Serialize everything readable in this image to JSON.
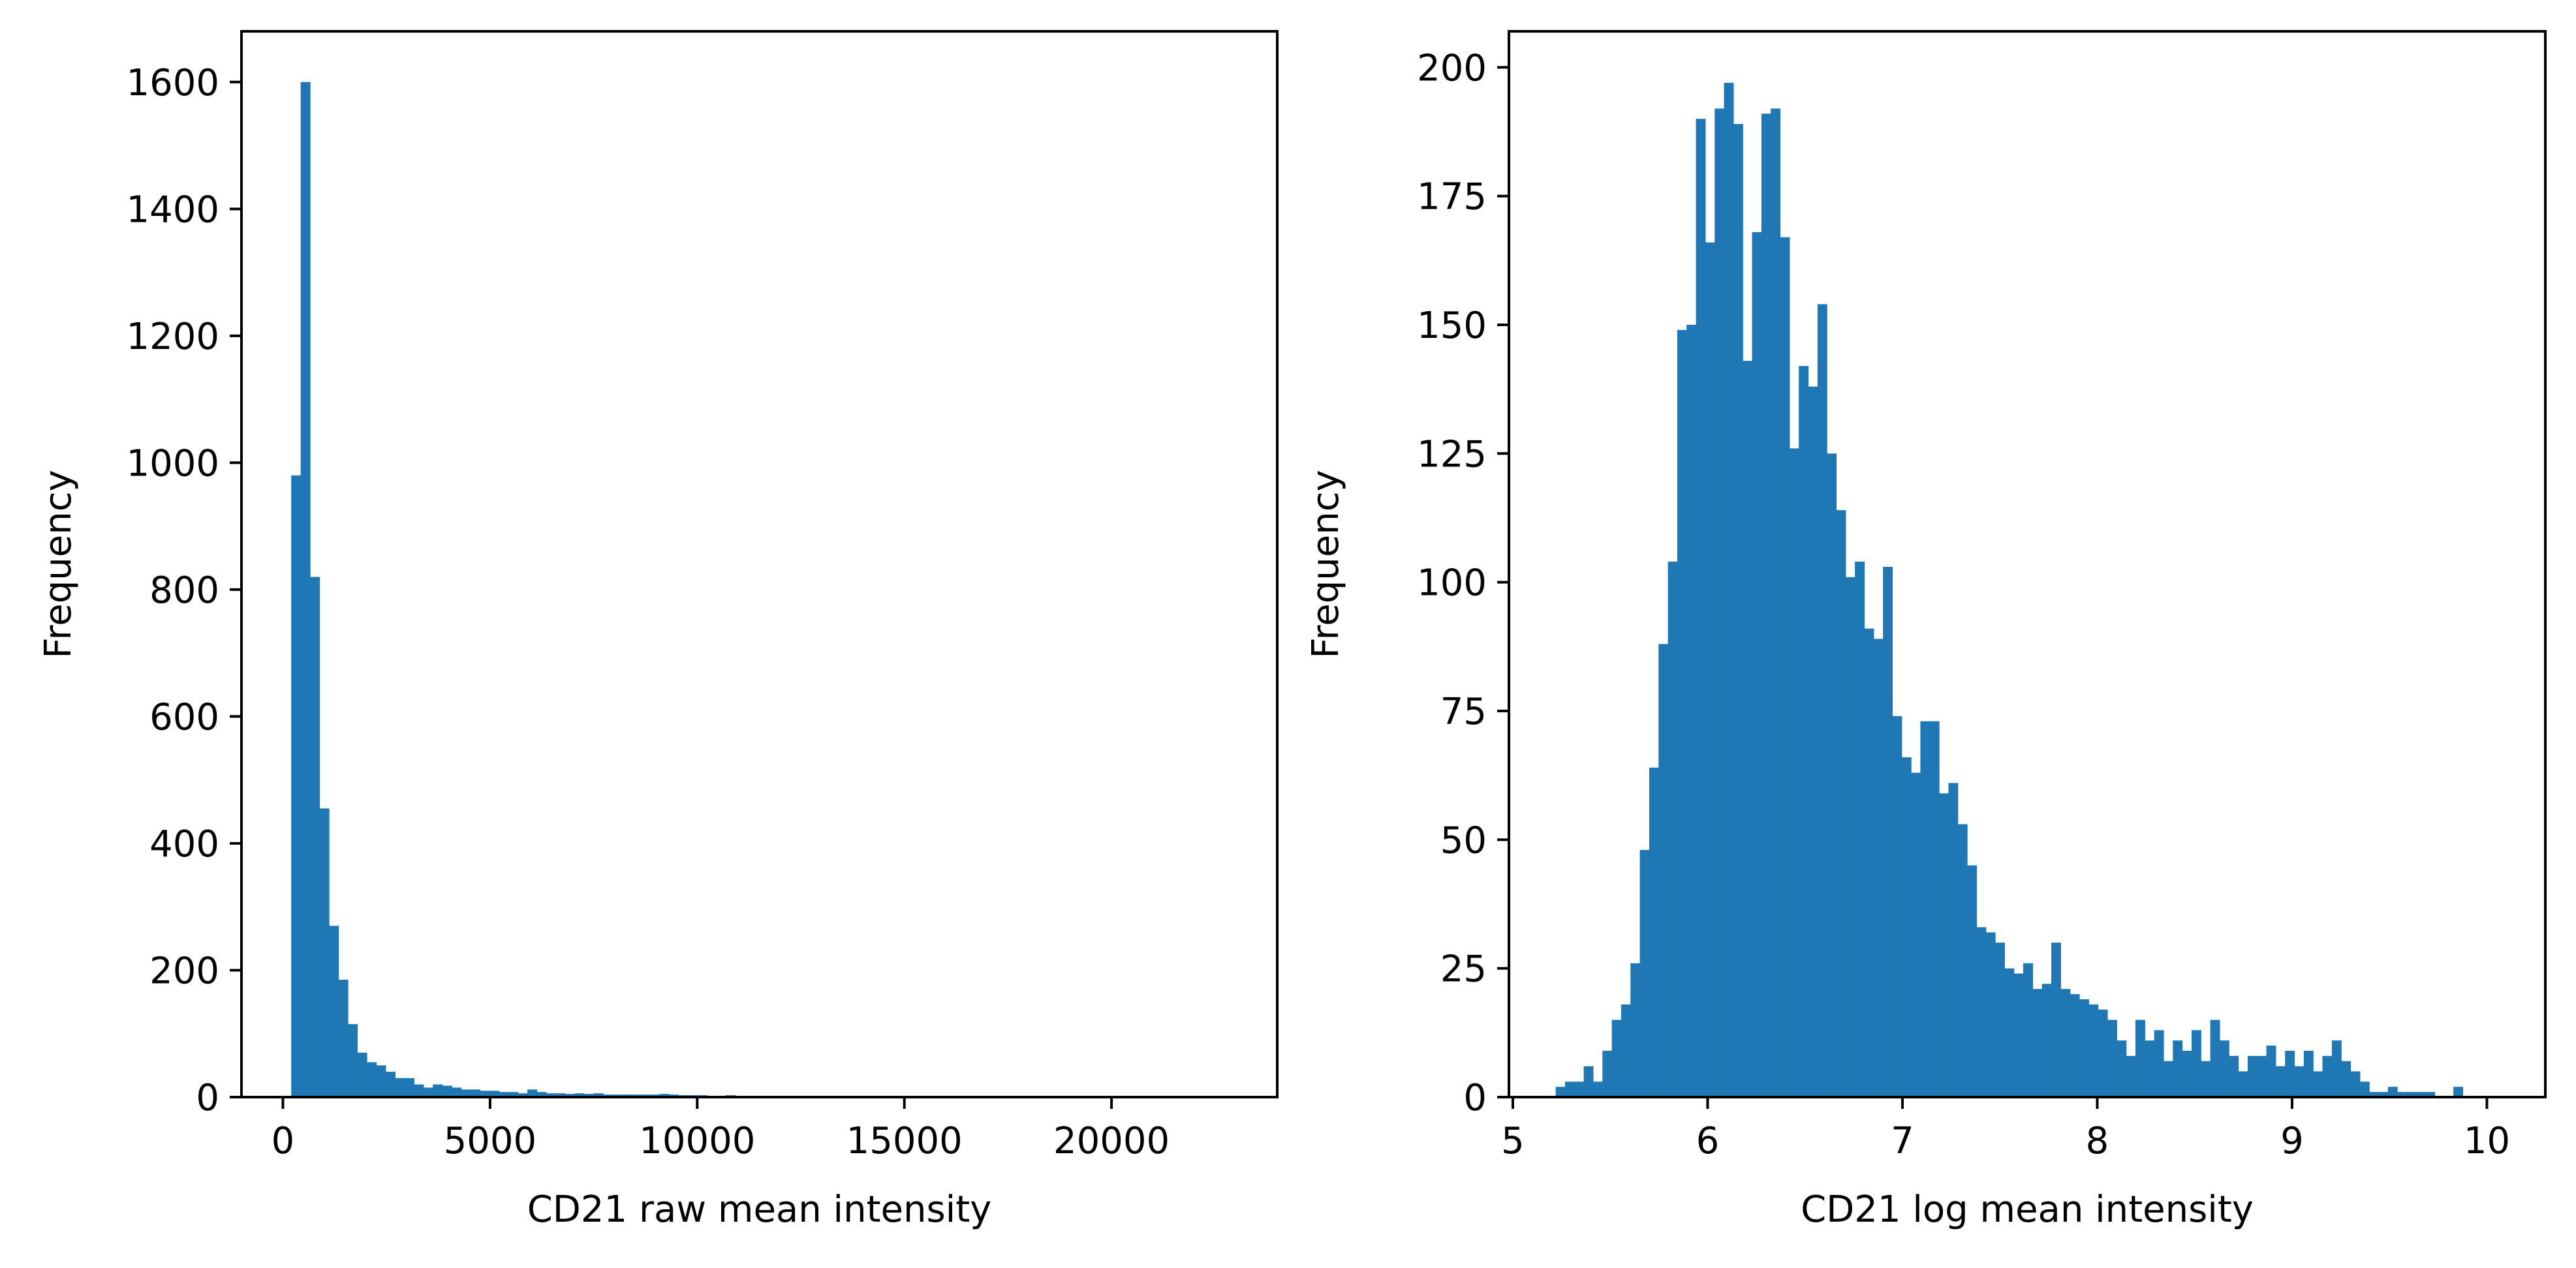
{
  "bar_color": "#1f77b4",
  "chart_data": [
    {
      "type": "bar",
      "subtype": "histogram",
      "xlabel": "CD21 raw mean intensity",
      "ylabel": "Frequency",
      "xlim": [
        -1000,
        24000
      ],
      "ylim": [
        0,
        1680
      ],
      "xticks": [
        0,
        5000,
        10000,
        15000,
        20000
      ],
      "yticks": [
        0,
        200,
        400,
        600,
        800,
        1000,
        1200,
        1400,
        1600
      ],
      "bin_start": 200,
      "bin_width": 228,
      "values": [
        980,
        1600,
        820,
        455,
        270,
        185,
        115,
        70,
        55,
        50,
        40,
        30,
        30,
        20,
        15,
        20,
        18,
        15,
        12,
        12,
        10,
        10,
        8,
        8,
        6,
        12,
        8,
        6,
        6,
        5,
        6,
        5,
        6,
        4,
        4,
        4,
        4,
        4,
        4,
        5,
        4,
        3,
        3,
        3,
        2,
        2,
        3,
        2,
        2,
        2,
        2,
        2,
        2,
        1,
        1,
        1,
        1,
        1,
        1,
        0,
        0,
        0,
        0,
        0,
        0,
        0,
        0,
        0,
        0,
        0,
        0,
        0,
        0,
        0,
        0,
        0,
        0,
        0,
        0,
        0,
        0,
        0,
        0,
        0,
        0,
        0,
        0,
        0,
        0,
        0,
        0,
        0,
        0,
        0,
        0,
        0,
        0,
        0,
        0,
        1
      ]
    },
    {
      "type": "bar",
      "subtype": "histogram",
      "xlabel": "CD21 log mean intensity",
      "ylabel": "Frequency",
      "xlim": [
        4.98,
        10.3
      ],
      "ylim": [
        0,
        207
      ],
      "xticks": [
        5,
        6,
        7,
        8,
        9,
        10
      ],
      "yticks": [
        0,
        25,
        50,
        75,
        100,
        125,
        150,
        175,
        200
      ],
      "bin_start": 5.22,
      "bin_width": 0.048,
      "values": [
        2,
        3,
        3,
        6,
        3,
        9,
        15,
        18,
        26,
        48,
        64,
        88,
        104,
        149,
        150,
        190,
        166,
        192,
        197,
        189,
        143,
        168,
        191,
        192,
        167,
        126,
        142,
        138,
        154,
        125,
        114,
        101,
        104,
        91,
        89,
        103,
        74,
        66,
        63,
        73,
        73,
        59,
        61,
        53,
        45,
        33,
        32,
        30,
        25,
        24,
        26,
        21,
        22,
        30,
        21,
        20,
        19,
        18,
        17,
        15,
        11,
        8,
        15,
        11,
        13,
        7,
        11,
        9,
        13,
        7,
        15,
        11,
        8,
        5,
        8,
        8,
        10,
        6,
        9,
        6,
        9,
        5,
        8,
        11,
        7,
        5,
        3,
        1,
        1,
        2,
        1,
        1,
        1,
        1,
        0,
        0,
        2
      ]
    }
  ]
}
